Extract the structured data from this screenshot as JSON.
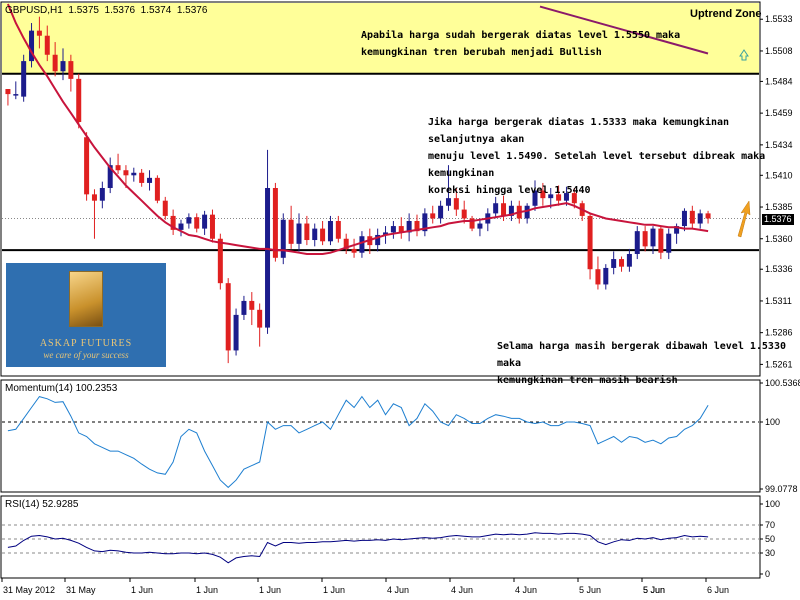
{
  "header": {
    "symbol": "GBPUSD,H1",
    "ohlc": [
      "1.5375",
      "1.5376",
      "1.5374",
      "1.5376"
    ]
  },
  "annotations": {
    "uptrend_zone": "Uptrend Zone",
    "bullish_note": [
      "Apabila harga sudah bergerak diatas level 1.5550 maka",
      "kemungkinan tren berubah menjadi Bullish"
    ],
    "middle_note": [
      "Jika harga bergerak diatas 1.5333 maka kemungkinan selanjutnya akan",
      "menuju level 1.5490. Setelah level tersebut dibreak maka kemungkinan",
      "koreksi hingga level 1.5440"
    ],
    "bearish_note": [
      "Selama harga masih bergerak dibawah level 1.5330 maka",
      "kemungkinan tren masih bearish"
    ]
  },
  "logo": {
    "name": "ASKAP FUTURES",
    "tagline": "we care of your success"
  },
  "current_price": "1.5376",
  "colors": {
    "zone_fill": "#ffff99",
    "bull_candle": "#1c1c8c",
    "bear_candle": "#e02020",
    "moving_average": "#c8143c",
    "upper_line": "#8b1a6a",
    "indicator_line": "#1e7fd0",
    "rsi_line": "#000080"
  },
  "chart_data": [
    {
      "type": "candlestick",
      "title": "GBPUSD,H1",
      "ylim": [
        1.5255,
        1.5545
      ],
      "yticks": [
        "1.5533",
        "1.5508",
        "1.5484",
        "1.5459",
        "1.5434",
        "1.5410",
        "1.5385",
        "1.5360",
        "1.5336",
        "1.5311",
        "1.5286",
        "1.5261"
      ],
      "horizontal_levels": [
        1.549,
        1.5351
      ],
      "xticks": [
        "31 May 2012",
        "31 May",
        "1 Jun",
        "1 Jun",
        "1 Jun",
        "1 Jun",
        "4 Jun",
        "4 Jun",
        "4 Jun",
        "5 Jun",
        "5 Jun",
        "5 Jun",
        "6 Jun"
      ],
      "candles": [
        [
          1.5478,
          1.5478,
          1.5465,
          1.5474
        ],
        [
          1.5474,
          1.5484,
          1.547,
          1.5474
        ],
        [
          1.5472,
          1.5505,
          1.5468,
          1.55
        ],
        [
          1.55,
          1.553,
          1.5495,
          1.5524
        ],
        [
          1.5524,
          1.5535,
          1.551,
          1.552
        ],
        [
          1.552,
          1.5528,
          1.55,
          1.5505
        ],
        [
          1.5505,
          1.5515,
          1.5488,
          1.5492
        ],
        [
          1.5492,
          1.551,
          1.5485,
          1.55
        ],
        [
          1.55,
          1.5505,
          1.5476,
          1.5486
        ],
        [
          1.5486,
          1.549,
          1.5447,
          1.5452
        ],
        [
          1.544,
          1.5444,
          1.539,
          1.5395
        ],
        [
          1.5395,
          1.5399,
          1.536,
          1.539
        ],
        [
          1.539,
          1.5405,
          1.5384,
          1.54
        ],
        [
          1.54,
          1.5424,
          1.5396,
          1.5418
        ],
        [
          1.5418,
          1.5427,
          1.5411,
          1.5414
        ],
        [
          1.5414,
          1.5418,
          1.54,
          1.541
        ],
        [
          1.541,
          1.5416,
          1.5405,
          1.5412
        ],
        [
          1.5412,
          1.5415,
          1.5401,
          1.5404
        ],
        [
          1.5404,
          1.5414,
          1.5398,
          1.5408
        ],
        [
          1.5408,
          1.541,
          1.5388,
          1.539
        ],
        [
          1.539,
          1.5393,
          1.5375,
          1.5378
        ],
        [
          1.5378,
          1.5383,
          1.5363,
          1.5367
        ],
        [
          1.5367,
          1.5375,
          1.5362,
          1.5372
        ],
        [
          1.5372,
          1.538,
          1.5368,
          1.5377
        ],
        [
          1.5377,
          1.538,
          1.5365,
          1.5368
        ],
        [
          1.5368,
          1.5382,
          1.5363,
          1.5379
        ],
        [
          1.5379,
          1.5383,
          1.5357,
          1.536
        ],
        [
          1.536,
          1.5364,
          1.532,
          1.5325
        ],
        [
          1.5325,
          1.5329,
          1.5262,
          1.5272
        ],
        [
          1.5272,
          1.5305,
          1.5268,
          1.53
        ],
        [
          1.53,
          1.5315,
          1.5296,
          1.5311
        ],
        [
          1.5311,
          1.5318,
          1.5292,
          1.5304
        ],
        [
          1.5304,
          1.5309,
          1.5275,
          1.529
        ],
        [
          1.529,
          1.543,
          1.5285,
          1.54
        ],
        [
          1.54,
          1.5404,
          1.5342,
          1.5345
        ],
        [
          1.5345,
          1.538,
          1.534,
          1.5375
        ],
        [
          1.5375,
          1.5386,
          1.5352,
          1.5356
        ],
        [
          1.5356,
          1.538,
          1.535,
          1.5372
        ],
        [
          1.5372,
          1.5378,
          1.5355,
          1.5359
        ],
        [
          1.5359,
          1.5372,
          1.5354,
          1.5368
        ],
        [
          1.5368,
          1.5374,
          1.5355,
          1.5358
        ],
        [
          1.5358,
          1.5378,
          1.5355,
          1.5374
        ],
        [
          1.5374,
          1.5378,
          1.5357,
          1.536
        ],
        [
          1.536,
          1.5364,
          1.5348,
          1.5352
        ],
        [
          1.5352,
          1.536,
          1.5345,
          1.5349
        ],
        [
          1.5349,
          1.5366,
          1.5345,
          1.5362
        ],
        [
          1.5362,
          1.5368,
          1.5348,
          1.5355
        ],
        [
          1.5355,
          1.5368,
          1.535,
          1.5363
        ],
        [
          1.5363,
          1.537,
          1.5356,
          1.5365
        ],
        [
          1.5365,
          1.5374,
          1.536,
          1.537
        ],
        [
          1.537,
          1.5377,
          1.536,
          1.5365
        ],
        [
          1.5365,
          1.538,
          1.5358,
          1.5374
        ],
        [
          1.5374,
          1.5379,
          1.5362,
          1.5366
        ],
        [
          1.5366,
          1.5384,
          1.5362,
          1.538
        ],
        [
          1.538,
          1.5386,
          1.5372,
          1.5376
        ],
        [
          1.5376,
          1.539,
          1.5372,
          1.5386
        ],
        [
          1.5386,
          1.5418,
          1.5382,
          1.5392
        ],
        [
          1.5392,
          1.54,
          1.5378,
          1.5383
        ],
        [
          1.5383,
          1.539,
          1.5372,
          1.5376
        ],
        [
          1.5376,
          1.5378,
          1.5366,
          1.5368
        ],
        [
          1.5368,
          1.5376,
          1.5362,
          1.5372
        ],
        [
          1.5372,
          1.5384,
          1.5366,
          1.538
        ],
        [
          1.538,
          1.5393,
          1.5376,
          1.5388
        ],
        [
          1.5388,
          1.5394,
          1.5374,
          1.5378
        ],
        [
          1.5378,
          1.539,
          1.5374,
          1.5386
        ],
        [
          1.5386,
          1.539,
          1.5372,
          1.5376
        ],
        [
          1.5376,
          1.5388,
          1.5372,
          1.5386
        ],
        [
          1.5386,
          1.5406,
          1.5382,
          1.5398
        ],
        [
          1.5398,
          1.5404,
          1.5386,
          1.5392
        ],
        [
          1.5392,
          1.54,
          1.5384,
          1.5395
        ],
        [
          1.5395,
          1.5402,
          1.5386,
          1.539
        ],
        [
          1.539,
          1.5401,
          1.5386,
          1.5396
        ],
        [
          1.5396,
          1.54,
          1.5384,
          1.5388
        ],
        [
          1.5388,
          1.539,
          1.5374,
          1.5378
        ],
        [
          1.5378,
          1.538,
          1.5328,
          1.5336
        ],
        [
          1.5336,
          1.5346,
          1.532,
          1.5324
        ],
        [
          1.5324,
          1.534,
          1.532,
          1.5337
        ],
        [
          1.5337,
          1.535,
          1.5332,
          1.5344
        ],
        [
          1.5344,
          1.5346,
          1.5334,
          1.5338
        ],
        [
          1.5338,
          1.5352,
          1.5334,
          1.5348
        ],
        [
          1.5348,
          1.537,
          1.5344,
          1.5366
        ],
        [
          1.5366,
          1.537,
          1.535,
          1.5354
        ],
        [
          1.5354,
          1.537,
          1.5348,
          1.5368
        ],
        [
          1.5368,
          1.537,
          1.5344,
          1.5349
        ],
        [
          1.5349,
          1.5368,
          1.5344,
          1.5364
        ],
        [
          1.5364,
          1.5372,
          1.5356,
          1.537
        ],
        [
          1.537,
          1.5384,
          1.5366,
          1.5382
        ],
        [
          1.5382,
          1.5386,
          1.5368,
          1.5372
        ],
        [
          1.5372,
          1.5383,
          1.5368,
          1.538
        ],
        [
          1.538,
          1.5382,
          1.5372,
          1.5376
        ]
      ],
      "moving_average": [
        1.5545,
        1.553,
        1.5518,
        1.5507,
        1.5497,
        1.5488,
        1.5478,
        1.5468,
        1.5459,
        1.545,
        1.5441,
        1.5432,
        1.5424,
        1.5416,
        1.5409,
        1.5402,
        1.5396,
        1.539,
        1.5384,
        1.5378,
        1.5373,
        1.5369,
        1.5366,
        1.5363,
        1.5362,
        1.536,
        1.5358,
        1.5357,
        1.5356,
        1.5355,
        1.5354,
        1.5353,
        1.5352,
        1.5352,
        1.5351,
        1.5351,
        1.535,
        1.5349,
        1.5348,
        1.5348,
        1.5348,
        1.5349,
        1.5351,
        1.5353,
        1.5355,
        1.5357,
        1.5359,
        1.5361,
        1.5363,
        1.5364,
        1.5365,
        1.5366,
        1.5367,
        1.5368,
        1.5369,
        1.537,
        1.5372,
        1.5373,
        1.5374,
        1.5374,
        1.5375,
        1.5376,
        1.5377,
        1.5378,
        1.5379,
        1.5381,
        1.5382,
        1.5384,
        1.5385,
        1.5386,
        1.5387,
        1.5388,
        1.5386,
        1.5383,
        1.538,
        1.5378,
        1.5376,
        1.5375,
        1.5374,
        1.5373,
        1.5372,
        1.5371,
        1.5371,
        1.537,
        1.5369,
        1.5369,
        1.5368,
        1.5368,
        1.5367,
        1.5366
      ],
      "upper_line": [
        1.5543,
        1.5506
      ]
    },
    {
      "type": "line",
      "title": "Momentum(14) 100.2353",
      "ylim": [
        99.0778,
        100.5368
      ],
      "yticks": [
        "100.5368",
        "100",
        "99.0778"
      ],
      "reference_level": 100,
      "values": [
        99.88,
        99.9,
        100.05,
        100.2,
        100.35,
        100.32,
        100.27,
        100.28,
        100.08,
        99.85,
        99.8,
        99.7,
        99.65,
        99.6,
        99.6,
        99.55,
        99.5,
        99.42,
        99.35,
        99.3,
        99.28,
        99.45,
        99.8,
        99.9,
        99.85,
        99.6,
        99.4,
        99.2,
        99.1,
        99.2,
        99.35,
        99.4,
        99.45,
        100.0,
        99.9,
        99.95,
        99.95,
        99.85,
        99.9,
        99.95,
        100.0,
        99.9,
        100.1,
        100.3,
        100.2,
        100.35,
        100.2,
        100.3,
        100.1,
        100.25,
        100.2,
        99.95,
        100.05,
        100.25,
        100.15,
        100.0,
        99.95,
        100.1,
        100.05,
        99.98,
        99.98,
        100.05,
        100.1,
        100.08,
        100.05,
        100.05,
        100.0,
        99.98,
        100.0,
        99.95,
        99.95,
        100.0,
        100.0,
        99.98,
        99.95,
        99.7,
        99.75,
        99.8,
        99.72,
        99.8,
        99.78,
        99.72,
        99.75,
        99.7,
        99.78,
        99.8,
        99.9,
        99.95,
        100.05,
        100.23
      ]
    },
    {
      "type": "line",
      "title": "RSI(14) 52.9285",
      "ylim": [
        0,
        100
      ],
      "yticks": [
        "100",
        "70",
        "50",
        "30",
        "0"
      ],
      "levels": [
        70,
        50,
        30
      ],
      "values": [
        38,
        40,
        48,
        54,
        55,
        53,
        50,
        51,
        48,
        44,
        38,
        33,
        32,
        34,
        33,
        31,
        30,
        30,
        31,
        30,
        29,
        29,
        30,
        30,
        29,
        30,
        28,
        24,
        16,
        23,
        25,
        26,
        25,
        45,
        40,
        45,
        45,
        44,
        45,
        45,
        46,
        46,
        47,
        48,
        47,
        48,
        48,
        49,
        48,
        50,
        49,
        50,
        51,
        52,
        51,
        52,
        54,
        55,
        54,
        53,
        53,
        55,
        57,
        56,
        57,
        56,
        57,
        59,
        58,
        58,
        57,
        58,
        58,
        57,
        55,
        46,
        42,
        46,
        49,
        48,
        51,
        50,
        52,
        49,
        51,
        52,
        55,
        53,
        54,
        53
      ]
    }
  ]
}
